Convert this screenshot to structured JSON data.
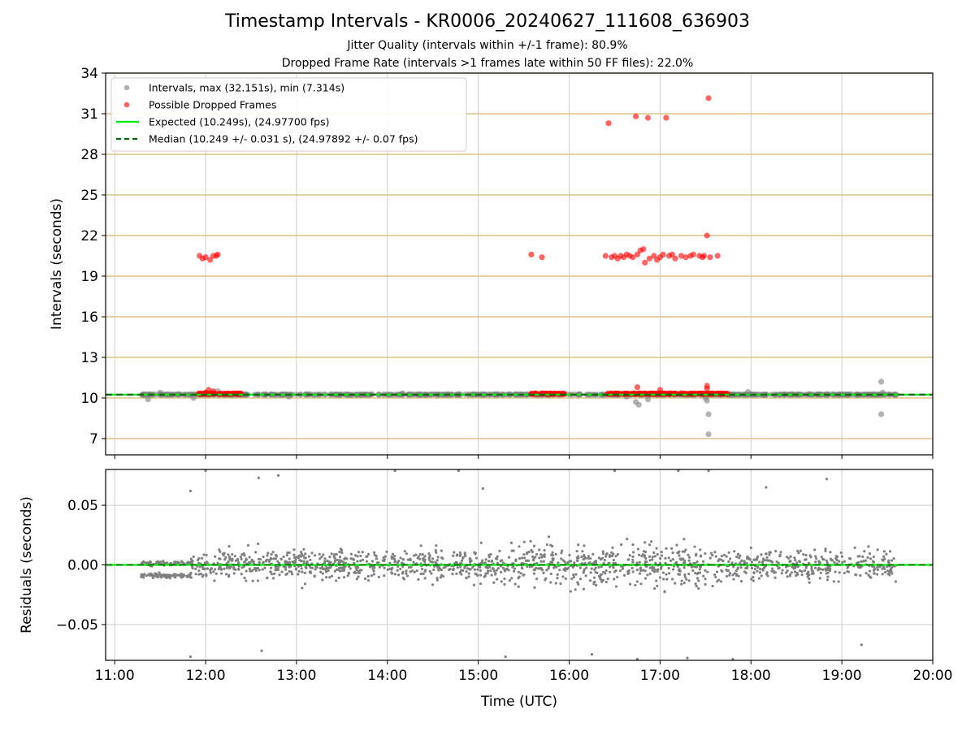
{
  "title": "Timestamp Intervals - KR0006_20240627_111608_636903",
  "subtitle_1": "Jitter Quality (intervals within +/-1 frame): 80.9%",
  "subtitle_2": "Dropped Frame Rate (intervals >1 frames late within 50 FF files): 22.0%",
  "colors": {
    "intervals": "#808080",
    "dropped": "#ff0000",
    "expected": "#00ee00",
    "median": "#006400",
    "hgrid": "#d4b870",
    "vgrid": "#cccccc"
  },
  "chart_data": [
    {
      "type": "scatter",
      "ylabel": "Intervals (seconds)",
      "xlim": [
        "10:54",
        "20:00"
      ],
      "ylim": [
        5.8,
        34
      ],
      "yticks": [
        "7",
        "10",
        "13",
        "16",
        "19",
        "22",
        "25",
        "28",
        "31",
        "34"
      ],
      "xticks": [
        "11:00",
        "12:00",
        "13:00",
        "14:00",
        "15:00",
        "16:00",
        "17:00",
        "18:00",
        "19:00",
        "20:00"
      ],
      "grid": true,
      "legend_position": "upper-left",
      "legend": [
        {
          "label": "Intervals, max (32.151s), min (7.314s)",
          "style": "marker",
          "color": "#808080"
        },
        {
          "label": "Possible Dropped Frames",
          "style": "marker",
          "color": "#ff0000"
        },
        {
          "label": "Expected (10.249s), (24.97700 fps)",
          "style": "line",
          "color": "#00ee00"
        },
        {
          "label": "Median (10.249 +/- 0.031 s), (24.97892 +/- 0.07 fps)",
          "style": "dash",
          "color": "#006400"
        }
      ],
      "expected_y": 10.249,
      "median_y": 10.249,
      "baseline_series": {
        "name": "Intervals, max (32.151s), min (7.314s)",
        "x_range": [
          "11:17",
          "19:36"
        ],
        "y": 10.25,
        "note": "dense band near 10.25 s"
      },
      "series": [
        {
          "name": "Intervals, max (32.151s), min (7.314s)",
          "points": [
            [
              "11:22",
              9.9
            ],
            [
              "11:30",
              10.4
            ],
            [
              "11:52",
              10.0
            ],
            [
              "12:08",
              10.5
            ],
            [
              "12:55",
              10.1
            ],
            [
              "14:10",
              10.35
            ],
            [
              "16:38",
              10.1
            ],
            [
              "16:44",
              9.7
            ],
            [
              "16:46",
              9.5
            ],
            [
              "16:52",
              9.9
            ],
            [
              "17:30",
              10.0
            ],
            [
              "17:31",
              9.8
            ],
            [
              "17:32",
              8.8
            ],
            [
              "17:32",
              7.314
            ],
            [
              "17:58",
              10.45
            ],
            [
              "19:26",
              11.2
            ],
            [
              "19:26",
              8.8
            ],
            [
              "19:27",
              10.4
            ]
          ]
        },
        {
          "name": "Possible Dropped Frames",
          "points": [
            [
              "11:56",
              20.5
            ],
            [
              "11:58",
              20.3
            ],
            [
              "12:00",
              20.4
            ],
            [
              "12:03",
              20.2
            ],
            [
              "12:05",
              20.5
            ],
            [
              "12:07",
              20.5
            ],
            [
              "12:08",
              20.6
            ],
            [
              "15:35",
              20.6
            ],
            [
              "15:42",
              20.4
            ],
            [
              "16:24",
              20.5
            ],
            [
              "16:26",
              30.3
            ],
            [
              "16:28",
              20.4
            ],
            [
              "16:30",
              20.5
            ],
            [
              "16:32",
              20.3
            ],
            [
              "16:34",
              20.5
            ],
            [
              "16:36",
              20.4
            ],
            [
              "16:38",
              20.6
            ],
            [
              "16:40",
              20.5
            ],
            [
              "16:42",
              20.4
            ],
            [
              "16:44",
              30.8
            ],
            [
              "16:45",
              20.6
            ],
            [
              "16:47",
              20.9
            ],
            [
              "16:49",
              21.0
            ],
            [
              "16:50",
              20.0
            ],
            [
              "16:52",
              30.7
            ],
            [
              "16:53",
              20.3
            ],
            [
              "16:56",
              20.5
            ],
            [
              "16:58",
              20.2
            ],
            [
              "17:00",
              20.4
            ],
            [
              "17:02",
              20.6
            ],
            [
              "17:04",
              30.7
            ],
            [
              "17:06",
              20.5
            ],
            [
              "17:08",
              20.6
            ],
            [
              "17:10",
              20.3
            ],
            [
              "17:14",
              20.5
            ],
            [
              "17:17",
              20.4
            ],
            [
              "17:20",
              20.5
            ],
            [
              "17:22",
              20.6
            ],
            [
              "17:26",
              20.5
            ],
            [
              "17:28",
              20.4
            ],
            [
              "17:29",
              20.5
            ],
            [
              "17:31",
              22.0
            ],
            [
              "17:32",
              32.151
            ],
            [
              "17:33",
              20.4
            ],
            [
              "17:38",
              20.5
            ],
            [
              "12:00",
              10.4
            ],
            [
              "12:02",
              10.6
            ],
            [
              "12:05",
              10.5
            ],
            [
              "16:45",
              10.8
            ],
            [
              "17:00",
              10.6
            ],
            [
              "17:31",
              10.9
            ],
            [
              "17:31",
              10.7
            ]
          ]
        }
      ]
    },
    {
      "type": "scatter",
      "ylabel": "Residuals (seconds)",
      "xlabel": "Time (UTC)",
      "xlim": [
        "10:54",
        "20:00"
      ],
      "ylim": [
        -0.08,
        0.08
      ],
      "yticks": [
        "−0.05",
        "0.00",
        "0.05"
      ],
      "xticks": [
        "11:00",
        "12:00",
        "13:00",
        "14:00",
        "15:00",
        "16:00",
        "17:00",
        "18:00",
        "19:00",
        "20:00"
      ],
      "grid": true,
      "zero_line_y": 0.0,
      "series": [
        {
          "name": "Residuals (seconds)",
          "segments": [
            {
              "x_range": [
                "11:17",
                "11:50"
              ],
              "spread": 0.012,
              "note": "tight band around 0"
            },
            {
              "x_range": [
                "11:50",
                "19:36"
              ],
              "spread": 0.08,
              "note": "wide scatter, roughly normal around 0"
            }
          ],
          "sample_points": [
            [
              "11:50",
              0.062
            ],
            [
              "11:50",
              -0.077
            ],
            [
              "12:00",
              0.079
            ],
            [
              "12:35",
              0.073
            ],
            [
              "12:37",
              -0.072
            ],
            [
              "12:48",
              0.075
            ],
            [
              "14:05",
              0.079
            ],
            [
              "14:47",
              0.079
            ],
            [
              "15:03",
              0.064
            ],
            [
              "15:18",
              -0.077
            ],
            [
              "16:15",
              -0.075
            ],
            [
              "16:30",
              0.079
            ],
            [
              "16:45",
              -0.079
            ],
            [
              "17:12",
              0.079
            ],
            [
              "17:18",
              -0.078
            ],
            [
              "17:32",
              0.079
            ],
            [
              "17:48",
              -0.079
            ],
            [
              "18:10",
              0.065
            ],
            [
              "18:50",
              0.072
            ],
            [
              "19:13",
              -0.067
            ]
          ]
        }
      ]
    }
  ]
}
